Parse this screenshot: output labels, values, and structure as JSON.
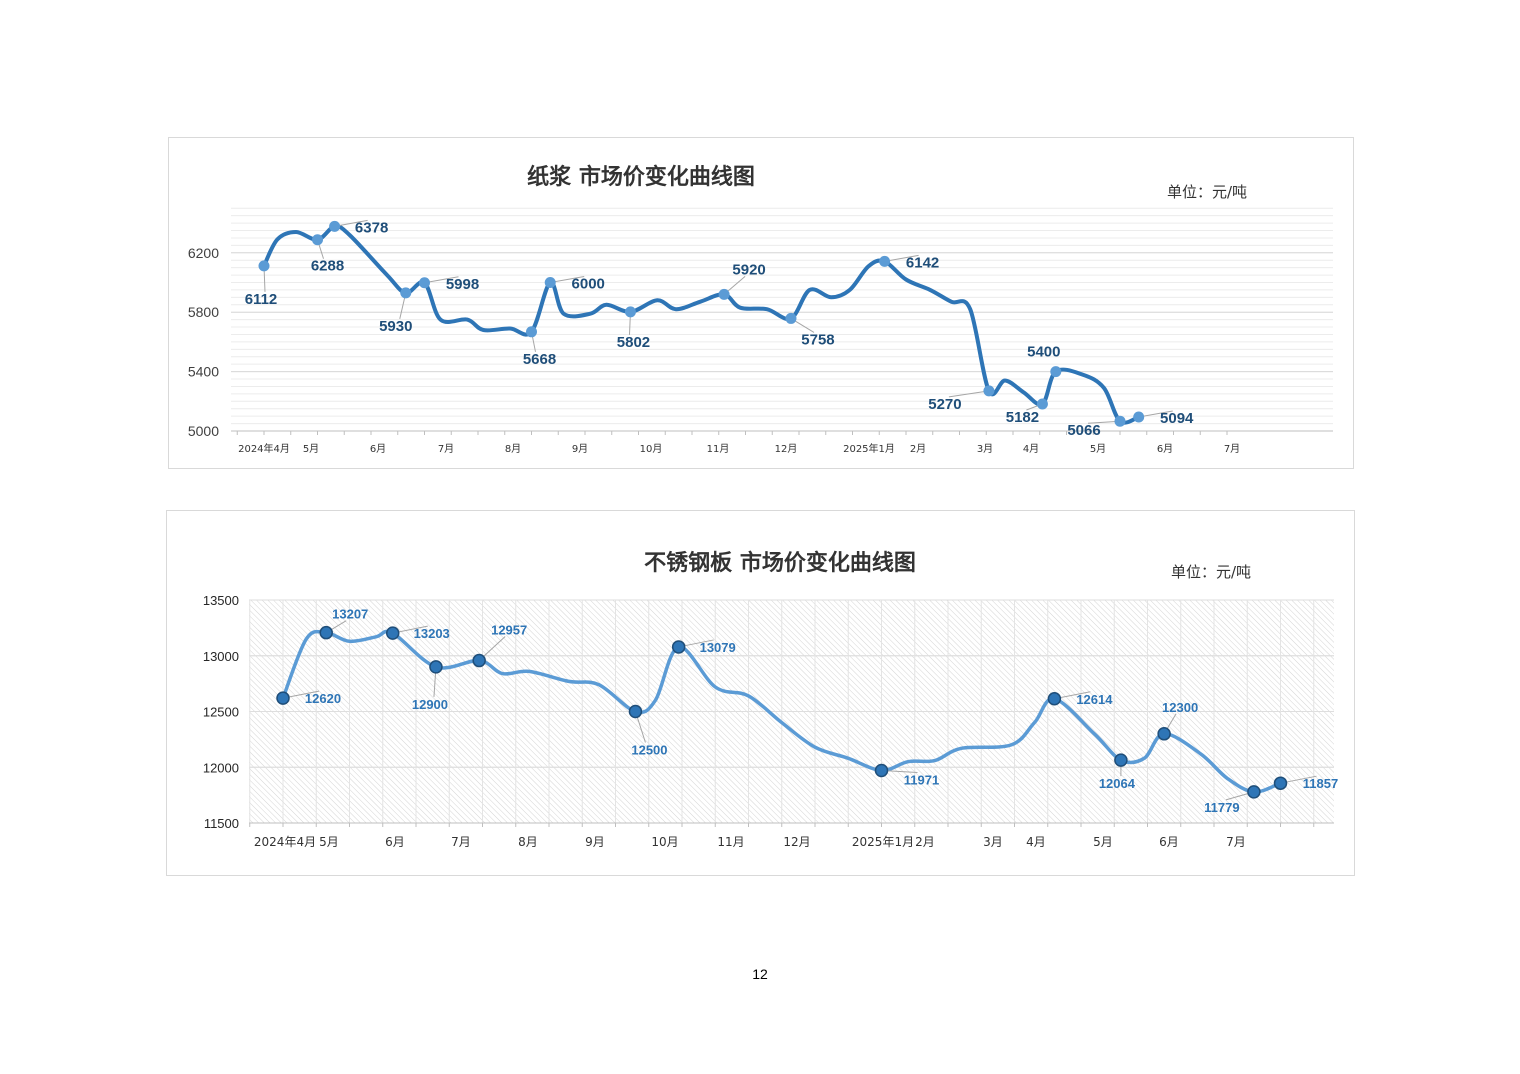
{
  "page_number": "12",
  "chart_data": [
    {
      "type": "line",
      "title": "纸浆 市场价变化曲线图",
      "unit": "单位：元/吨",
      "ylim": [
        5000,
        6500
      ],
      "yticks": [
        5000,
        5400,
        5800,
        6200
      ],
      "xlabels": [
        "2024年4月",
        "5月",
        "6月",
        "7月",
        "8月",
        "9月",
        "10月",
        "11月",
        "12月",
        "2025年1月",
        "2月",
        "3月",
        "4月",
        "5月",
        "6月",
        "7月"
      ],
      "colors": {
        "line": "#2e75b6",
        "marker": "#5b9bd5",
        "label": "#1f4e79"
      },
      "series": [
        {
          "points": [
            {
              "x": 0.0,
              "y": 6112,
              "label": "6112",
              "m": true
            },
            {
              "x": 0.25,
              "y": 6290
            },
            {
              "x": 0.6,
              "y": 6340
            },
            {
              "x": 1.0,
              "y": 6288,
              "label": "6288",
              "m": true
            },
            {
              "x": 1.32,
              "y": 6378,
              "label": "6378",
              "m": true
            },
            {
              "x": 1.6,
              "y": 6320
            },
            {
              "x": 2.3,
              "y": 6050
            },
            {
              "x": 2.65,
              "y": 5930,
              "label": "5930",
              "m": true
            },
            {
              "x": 3.0,
              "y": 5998,
              "label": "5998",
              "m": true
            },
            {
              "x": 3.3,
              "y": 5750
            },
            {
              "x": 3.8,
              "y": 5750
            },
            {
              "x": 4.1,
              "y": 5680
            },
            {
              "x": 4.6,
              "y": 5690
            },
            {
              "x": 5.0,
              "y": 5668,
              "label": "5668",
              "m": true
            },
            {
              "x": 5.35,
              "y": 6000,
              "label": "6000",
              "m": true
            },
            {
              "x": 5.6,
              "y": 5790
            },
            {
              "x": 6.1,
              "y": 5790
            },
            {
              "x": 6.4,
              "y": 5850
            },
            {
              "x": 6.85,
              "y": 5802,
              "label": "5802",
              "m": true
            },
            {
              "x": 7.35,
              "y": 5880
            },
            {
              "x": 7.7,
              "y": 5820
            },
            {
              "x": 8.15,
              "y": 5870
            },
            {
              "x": 8.6,
              "y": 5920,
              "label": "5920",
              "m": true
            },
            {
              "x": 8.9,
              "y": 5830
            },
            {
              "x": 9.4,
              "y": 5820
            },
            {
              "x": 9.85,
              "y": 5758,
              "label": "5758",
              "m": true
            },
            {
              "x": 10.2,
              "y": 5950
            },
            {
              "x": 10.6,
              "y": 5900
            },
            {
              "x": 10.95,
              "y": 5950
            },
            {
              "x": 11.3,
              "y": 6110
            },
            {
              "x": 11.6,
              "y": 6142,
              "label": "6142",
              "m": true
            },
            {
              "x": 12.0,
              "y": 6020
            },
            {
              "x": 12.45,
              "y": 5950
            },
            {
              "x": 12.85,
              "y": 5870
            },
            {
              "x": 13.2,
              "y": 5820
            },
            {
              "x": 13.55,
              "y": 5270,
              "label": "5270",
              "m": true
            },
            {
              "x": 13.85,
              "y": 5340
            },
            {
              "x": 14.2,
              "y": 5260
            },
            {
              "x": 14.55,
              "y": 5182,
              "label": "5182",
              "m": true
            },
            {
              "x": 14.8,
              "y": 5400,
              "label": "5400",
              "m": true
            },
            {
              "x": 15.3,
              "y": 5380
            },
            {
              "x": 15.7,
              "y": 5290
            },
            {
              "x": 16.0,
              "y": 5066,
              "label": "5066",
              "m": true
            },
            {
              "x": 16.35,
              "y": 5094,
              "label": "5094",
              "m": true
            }
          ]
        }
      ]
    },
    {
      "type": "line",
      "title": "不锈钢板 市场价变化曲线图",
      "unit": "单位：元/吨",
      "ylim": [
        11500,
        13500
      ],
      "yticks": [
        11500,
        12000,
        12500,
        13000,
        13500
      ],
      "xlabels": [
        "2024年4月",
        "5月",
        "6月",
        "7月",
        "8月",
        "9月",
        "10月",
        "11月",
        "12月",
        "2025年1月",
        "2月",
        "3月",
        "4月",
        "5月",
        "6月",
        "7月"
      ],
      "colors": {
        "line": "#5b9bd5",
        "marker": "#2e75b6",
        "label": "#2e75b6"
      },
      "series": [
        {
          "points": [
            {
              "x": 0.0,
              "y": 12620,
              "label": "12620",
              "m": true
            },
            {
              "x": 0.35,
              "y": 13150
            },
            {
              "x": 0.65,
              "y": 13207,
              "label": "13207",
              "m": true
            },
            {
              "x": 1.0,
              "y": 13130
            },
            {
              "x": 1.4,
              "y": 13170
            },
            {
              "x": 1.65,
              "y": 13203,
              "label": "13203",
              "m": true
            },
            {
              "x": 2.3,
              "y": 12900,
              "label": "12900",
              "m": true
            },
            {
              "x": 2.95,
              "y": 12957,
              "label": "12957",
              "m": true
            },
            {
              "x": 3.3,
              "y": 12840
            },
            {
              "x": 3.7,
              "y": 12860
            },
            {
              "x": 4.3,
              "y": 12770
            },
            {
              "x": 4.75,
              "y": 12740
            },
            {
              "x": 5.3,
              "y": 12500,
              "label": "12500",
              "m": true
            },
            {
              "x": 5.6,
              "y": 12600
            },
            {
              "x": 5.95,
              "y": 13079,
              "label": "13079",
              "m": true
            },
            {
              "x": 6.5,
              "y": 12720
            },
            {
              "x": 7.0,
              "y": 12640
            },
            {
              "x": 7.5,
              "y": 12400
            },
            {
              "x": 8.0,
              "y": 12180
            },
            {
              "x": 8.5,
              "y": 12080
            },
            {
              "x": 9.0,
              "y": 11971,
              "label": "11971",
              "m": true
            },
            {
              "x": 9.4,
              "y": 12050
            },
            {
              "x": 9.8,
              "y": 12060
            },
            {
              "x": 10.2,
              "y": 12170
            },
            {
              "x": 10.95,
              "y": 12200
            },
            {
              "x": 11.3,
              "y": 12400
            },
            {
              "x": 11.6,
              "y": 12614,
              "label": "12614",
              "m": true
            },
            {
              "x": 12.2,
              "y": 12300
            },
            {
              "x": 12.6,
              "y": 12064,
              "label": "12064",
              "m": true
            },
            {
              "x": 12.95,
              "y": 12080
            },
            {
              "x": 13.25,
              "y": 12300,
              "label": "12300",
              "m": true
            },
            {
              "x": 13.8,
              "y": 12120
            },
            {
              "x": 14.2,
              "y": 11900
            },
            {
              "x": 14.6,
              "y": 11779,
              "label": "11779",
              "m": true
            },
            {
              "x": 15.0,
              "y": 11857,
              "label": "11857",
              "m": true
            }
          ]
        }
      ]
    }
  ]
}
